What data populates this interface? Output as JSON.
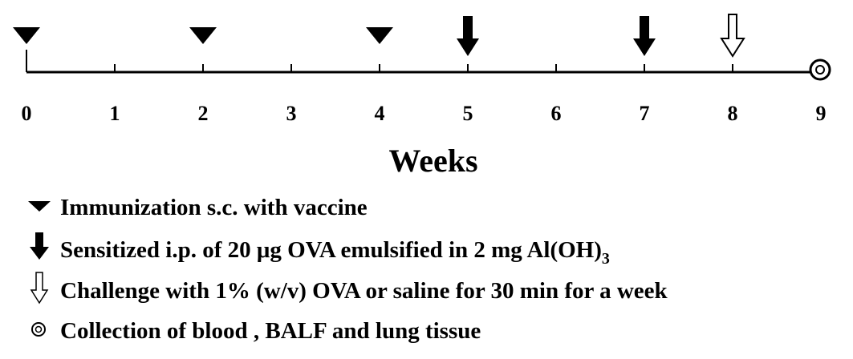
{
  "axis": {
    "ticks": [
      0,
      1,
      2,
      3,
      4,
      5,
      6,
      7,
      8,
      9
    ],
    "label": "Weeks"
  },
  "events": {
    "immunization": [
      0,
      2,
      4
    ],
    "sensitization": [
      5,
      7
    ],
    "challenge": [
      8
    ],
    "collection": [
      9
    ]
  },
  "legend": [
    {
      "text": "Immunization s.c. with vaccine"
    },
    {
      "text": "Sensitized i.p. of 20 μg OVA emulsified in 2 mg Al(OH)",
      "subscript": "3"
    },
    {
      "text": "Challenge with 1% (w/v) OVA or saline for 30 min for a week"
    },
    {
      "text": "Collection of blood , BALF and lung tissue"
    }
  ]
}
